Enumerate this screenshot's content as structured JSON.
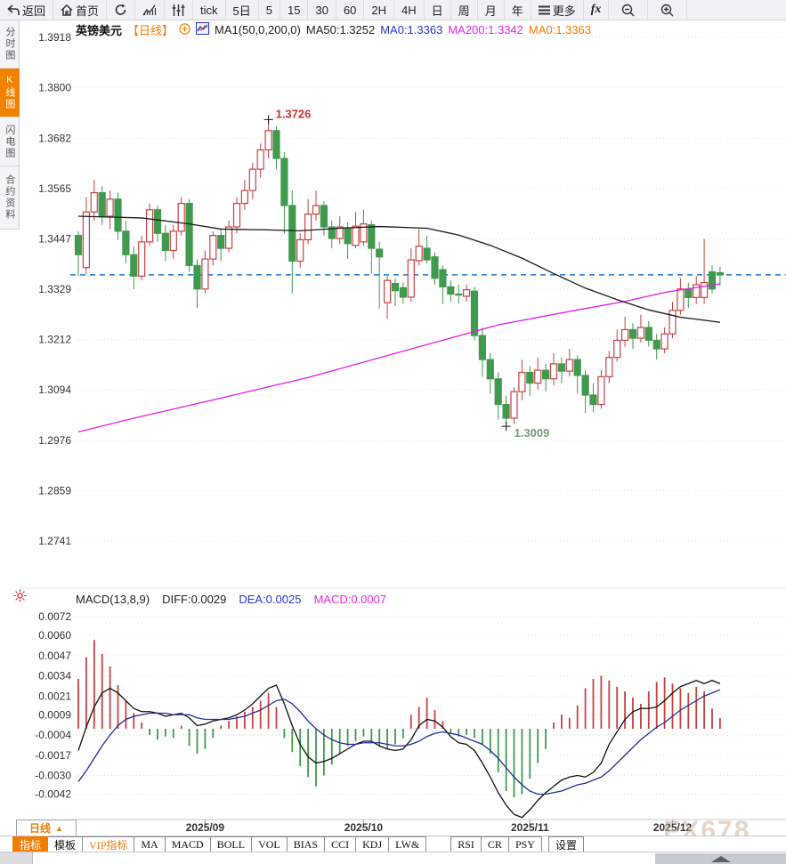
{
  "toolbar": {
    "back": "返回",
    "home": "首页",
    "tick": "tick",
    "periods": [
      "5日",
      "5",
      "15",
      "30",
      "60",
      "2H",
      "4H",
      "日",
      "周",
      "月",
      "年"
    ],
    "more": "更多",
    "fx": "fx"
  },
  "sidebar": {
    "items": [
      {
        "label": "分时图",
        "active": false
      },
      {
        "label": "K线图",
        "active": true
      },
      {
        "label": "闪电图",
        "active": false
      },
      {
        "label": "合约资料",
        "active": false
      }
    ]
  },
  "price_header": {
    "symbol": "英镑美元",
    "period_tag": "【日线】",
    "ma_settings": "MA1(50,0,200,0)",
    "ma50": "MA50:1.3252",
    "ma0_blue": "MA0:1.3363",
    "ma200": "MA200:1.3342",
    "ma0_orange": "MA0:1.3363"
  },
  "macd_header": {
    "title": "MACD(13,8,9)",
    "diff": "DIFF:0.0029",
    "dea": "DEA:0.0025",
    "macd": "MACD:0.0007"
  },
  "bottom": {
    "period_button": "日线",
    "tabs": [
      {
        "label": "指标",
        "state": "active"
      },
      {
        "label": "模板",
        "state": ""
      },
      {
        "label": "VIP指标",
        "state": "vip"
      },
      {
        "label": "MA",
        "state": ""
      },
      {
        "label": "MACD",
        "state": ""
      },
      {
        "label": "BOLL",
        "state": ""
      },
      {
        "label": "VOL",
        "state": ""
      },
      {
        "label": "BIAS",
        "state": ""
      },
      {
        "label": "CCI",
        "state": ""
      },
      {
        "label": "KDJ",
        "state": ""
      },
      {
        "label": "LW&",
        "state": ""
      },
      {
        "label": "RSI",
        "state": "gap"
      },
      {
        "label": "CR",
        "state": ""
      },
      {
        "label": "PSY",
        "state": ""
      },
      {
        "label": "设置",
        "state": "gap2"
      }
    ]
  },
  "watermark": "FX678",
  "chart_data": {
    "type": "candlestick+macd",
    "symbol": "英镑美元 (GBP/USD)",
    "timeframe": "日线",
    "price_axis": {
      "labels": [
        "1.3918",
        "1.3800",
        "1.3682",
        "1.3565",
        "1.3447",
        "1.3329",
        "1.3212",
        "1.3094",
        "1.2976",
        "1.2859",
        "1.2741"
      ],
      "last_price_line": 1.3363,
      "high_marker": {
        "index": 24,
        "price": 1.3726,
        "label": "1.3726"
      },
      "low_marker": {
        "index": 54,
        "price": 1.3009,
        "label": "1.3009"
      }
    },
    "x_axis": {
      "labels": [
        {
          "label": "2025/09",
          "index": 16
        },
        {
          "label": "2025/10",
          "index": 36
        },
        {
          "label": "2025/11",
          "index": 57
        },
        {
          "label": "2025/12",
          "index": 75
        }
      ]
    },
    "candles": [
      [
        1.3455,
        1.3465,
        1.336,
        1.341
      ],
      [
        1.338,
        1.3545,
        1.3365,
        1.351
      ],
      [
        1.351,
        1.3585,
        1.349,
        1.3555
      ],
      [
        1.3555,
        1.357,
        1.348,
        1.35
      ],
      [
        1.35,
        1.356,
        1.347,
        1.354
      ],
      [
        1.354,
        1.3555,
        1.3445,
        1.3465
      ],
      [
        1.3465,
        1.349,
        1.339,
        1.341
      ],
      [
        1.341,
        1.343,
        1.333,
        1.336
      ],
      [
        1.336,
        1.3455,
        1.335,
        1.344
      ],
      [
        1.344,
        1.353,
        1.343,
        1.3515
      ],
      [
        1.3515,
        1.3525,
        1.344,
        1.346
      ],
      [
        1.346,
        1.348,
        1.3395,
        1.342
      ],
      [
        1.342,
        1.348,
        1.34,
        1.3465
      ],
      [
        1.3465,
        1.3545,
        1.3455,
        1.353
      ],
      [
        1.353,
        1.354,
        1.337,
        1.3385
      ],
      [
        1.3385,
        1.34,
        1.3285,
        1.333
      ],
      [
        1.333,
        1.342,
        1.332,
        1.34
      ],
      [
        1.34,
        1.3465,
        1.3385,
        1.3455
      ],
      [
        1.3455,
        1.347,
        1.3395,
        1.3425
      ],
      [
        1.3425,
        1.349,
        1.3415,
        1.3475
      ],
      [
        1.3475,
        1.3545,
        1.346,
        1.353
      ],
      [
        1.353,
        1.3585,
        1.3515,
        1.356
      ],
      [
        1.356,
        1.3625,
        1.354,
        1.361
      ],
      [
        1.361,
        1.367,
        1.359,
        1.3655
      ],
      [
        1.3655,
        1.3726,
        1.3635,
        1.37
      ],
      [
        1.37,
        1.371,
        1.361,
        1.3635
      ],
      [
        1.3635,
        1.365,
        1.346,
        1.3525
      ],
      [
        1.3525,
        1.356,
        1.332,
        1.3395
      ],
      [
        1.3395,
        1.346,
        1.338,
        1.3445
      ],
      [
        1.3445,
        1.354,
        1.3435,
        1.3505
      ],
      [
        1.3505,
        1.356,
        1.349,
        1.3525
      ],
      [
        1.3525,
        1.3535,
        1.3455,
        1.3475
      ],
      [
        1.3475,
        1.349,
        1.3425,
        1.3448
      ],
      [
        1.3448,
        1.35,
        1.3435,
        1.3475
      ],
      [
        1.3473,
        1.3485,
        1.34,
        1.3436
      ],
      [
        1.3432,
        1.351,
        1.3425,
        1.3477
      ],
      [
        1.344,
        1.3515,
        1.343,
        1.3482
      ],
      [
        1.348,
        1.349,
        1.3366,
        1.3425
      ],
      [
        1.3423,
        1.344,
        1.3284,
        1.3405
      ],
      [
        1.3298,
        1.336,
        1.326,
        1.335
      ],
      [
        1.3343,
        1.3355,
        1.329,
        1.3326
      ],
      [
        1.3333,
        1.3345,
        1.3295,
        1.3311
      ],
      [
        1.3311,
        1.3425,
        1.33,
        1.3398
      ],
      [
        1.3396,
        1.347,
        1.3385,
        1.343
      ],
      [
        1.3425,
        1.3455,
        1.339,
        1.3398
      ],
      [
        1.3405,
        1.3415,
        1.334,
        1.3355
      ],
      [
        1.3375,
        1.3385,
        1.3295,
        1.3335
      ],
      [
        1.3335,
        1.335,
        1.33,
        1.3318
      ],
      [
        1.3318,
        1.334,
        1.3295,
        1.3316
      ],
      [
        1.3313,
        1.334,
        1.33,
        1.3328
      ],
      [
        1.3325,
        1.3335,
        1.321,
        1.3221
      ],
      [
        1.3221,
        1.324,
        1.3125,
        1.3165
      ],
      [
        1.3165,
        1.318,
        1.3085,
        1.312
      ],
      [
        1.312,
        1.3135,
        1.3025,
        1.306
      ],
      [
        1.306,
        1.308,
        1.3009,
        1.3028
      ],
      [
        1.3028,
        1.31,
        1.3015,
        1.309
      ],
      [
        1.309,
        1.3165,
        1.307,
        1.3135
      ],
      [
        1.3135,
        1.315,
        1.308,
        1.311
      ],
      [
        1.311,
        1.317,
        1.3095,
        1.314
      ],
      [
        1.314,
        1.3155,
        1.309,
        1.312
      ],
      [
        1.312,
        1.318,
        1.3105,
        1.3155
      ],
      [
        1.3155,
        1.317,
        1.311,
        1.3138
      ],
      [
        1.3138,
        1.319,
        1.3125,
        1.3165
      ],
      [
        1.3165,
        1.3175,
        1.3085,
        1.3128
      ],
      [
        1.3128,
        1.314,
        1.304,
        1.3082
      ],
      [
        1.3082,
        1.311,
        1.3042,
        1.306
      ],
      [
        1.306,
        1.314,
        1.305,
        1.3125
      ],
      [
        1.3125,
        1.3185,
        1.311,
        1.317
      ],
      [
        1.317,
        1.3235,
        1.316,
        1.321
      ],
      [
        1.321,
        1.3265,
        1.3195,
        1.3235
      ],
      [
        1.3235,
        1.325,
        1.319,
        1.3215
      ],
      [
        1.3215,
        1.327,
        1.3205,
        1.324
      ],
      [
        1.324,
        1.3255,
        1.3195,
        1.321
      ],
      [
        1.321,
        1.3225,
        1.3165,
        1.319
      ],
      [
        1.319,
        1.324,
        1.318,
        1.3225
      ],
      [
        1.3225,
        1.33,
        1.3215,
        1.328
      ],
      [
        1.328,
        1.3355,
        1.327,
        1.333
      ],
      [
        1.333,
        1.3345,
        1.3285,
        1.331
      ],
      [
        1.331,
        1.336,
        1.3295,
        1.334
      ],
      [
        1.331,
        1.3447,
        1.3295,
        1.3345
      ],
      [
        1.337,
        1.3385,
        1.332,
        1.333
      ],
      [
        1.3368,
        1.3382,
        1.3338,
        1.3363
      ]
    ],
    "ma50_points": [
      [
        0,
        1.35
      ],
      [
        8,
        1.3496
      ],
      [
        14,
        1.3482
      ],
      [
        18,
        1.347
      ],
      [
        24,
        1.3468
      ],
      [
        28,
        1.3466
      ],
      [
        33,
        1.3472
      ],
      [
        38,
        1.3476
      ],
      [
        44,
        1.3472
      ],
      [
        48,
        1.3456
      ],
      [
        52,
        1.3432
      ],
      [
        56,
        1.3402
      ],
      [
        60,
        1.3366
      ],
      [
        64,
        1.3332
      ],
      [
        68,
        1.3305
      ],
      [
        72,
        1.3281
      ],
      [
        76,
        1.3264
      ],
      [
        79,
        1.3257
      ],
      [
        81,
        1.3252
      ]
    ],
    "ma200_points": [
      [
        0,
        1.2996
      ],
      [
        7,
        1.3028
      ],
      [
        18,
        1.3075
      ],
      [
        29,
        1.3123
      ],
      [
        44,
        1.32
      ],
      [
        53,
        1.3246
      ],
      [
        63,
        1.3281
      ],
      [
        69,
        1.3301
      ],
      [
        74,
        1.3322
      ],
      [
        81,
        1.3342
      ]
    ],
    "macd": {
      "axis_labels": [
        "0.0072",
        "0.0060",
        "0.0047",
        "0.0034",
        "0.0021",
        "0.0009",
        "-0.0004",
        "-0.0017",
        "-0.0030",
        "-0.0042"
      ],
      "diff": [
        -0.0014,
        0.0001,
        0.0014,
        0.0023,
        0.0026,
        0.0023,
        0.0018,
        0.0013,
        0.0011,
        0.0011,
        0.001,
        0.0008,
        0.0009,
        0.001,
        0.0007,
        0.0002,
        0.0003,
        0.0005,
        0.0006,
        0.0007,
        0.0009,
        0.0012,
        0.0016,
        0.0021,
        0.0026,
        0.0028,
        0.0016,
        0.0002,
        -0.001,
        -0.0018,
        -0.0022,
        -0.0021,
        -0.0019,
        -0.0016,
        -0.0013,
        -0.001,
        -0.0008,
        -0.0008,
        -0.0011,
        -0.0013,
        -0.0014,
        -0.0013,
        -0.0007,
        0.0002,
        0.0006,
        0.0005,
        0.0001,
        -0.0005,
        -0.0009,
        -0.001,
        -0.0014,
        -0.0022,
        -0.0031,
        -0.0041,
        -0.0049,
        -0.0055,
        -0.0057,
        -0.0052,
        -0.0046,
        -0.0041,
        -0.0037,
        -0.0033,
        -0.0031,
        -0.003,
        -0.0031,
        -0.0028,
        -0.0022,
        -0.001,
        -0.0002,
        0.0006,
        0.0011,
        0.0013,
        0.0013,
        0.0014,
        0.0018,
        0.0023,
        0.0027,
        0.0029,
        0.0031,
        0.0029,
        0.0031,
        0.0029
      ],
      "dea": [
        -0.0034,
        -0.0027,
        -0.0019,
        -0.0011,
        -0.0004,
        0.0002,
        0.0006,
        0.0008,
        0.0009,
        0.001,
        0.001,
        0.001,
        0.0009,
        0.0009,
        0.0009,
        0.0007,
        0.0006,
        0.0006,
        0.0006,
        0.0006,
        0.0007,
        0.0008,
        0.001,
        0.0012,
        0.0015,
        0.0018,
        0.0019,
        0.0016,
        0.0011,
        0.0005,
        0.0,
        -0.0004,
        -0.0007,
        -0.0009,
        -0.001,
        -0.001,
        -0.0009,
        -0.0009,
        -0.0009,
        -0.001,
        -0.0011,
        -0.0011,
        -0.001,
        -0.0008,
        -0.0005,
        -0.0003,
        -0.0002,
        -0.0003,
        -0.0004,
        -0.0006,
        -0.0008,
        -0.001,
        -0.0014,
        -0.0019,
        -0.0025,
        -0.0031,
        -0.0036,
        -0.004,
        -0.0042,
        -0.0042,
        -0.0041,
        -0.004,
        -0.0038,
        -0.0036,
        -0.0035,
        -0.0033,
        -0.0031,
        -0.0027,
        -0.0022,
        -0.0017,
        -0.0012,
        -0.0007,
        -0.0003,
        0.0001,
        0.0004,
        0.0008,
        0.0012,
        0.0015,
        0.0018,
        0.0021,
        0.0023,
        0.0025
      ],
      "histogram": [
        0.0032,
        0.0046,
        0.0057,
        0.0048,
        0.004,
        0.0028,
        0.0018,
        0.001,
        0.0004,
        -0.0004,
        -0.0007,
        -0.0005,
        -0.0006,
        0.0002,
        -0.0011,
        -0.0016,
        -0.0013,
        -0.0006,
        0.0002,
        0.0005,
        0.0008,
        0.0011,
        0.0014,
        0.0018,
        0.0023,
        0.0014,
        -0.0006,
        -0.0015,
        -0.0024,
        -0.0031,
        -0.0037,
        -0.003,
        -0.0023,
        -0.0016,
        -0.0011,
        -0.0008,
        -0.0005,
        -0.0008,
        -0.0011,
        -0.0013,
        -0.001,
        -0.0006,
        0.0009,
        0.0014,
        0.002,
        0.0012,
        0.0005,
        -0.0003,
        -0.0005,
        -0.0004,
        -0.0006,
        -0.001,
        -0.0016,
        -0.0028,
        -0.004,
        -0.0044,
        -0.0042,
        -0.0032,
        -0.0022,
        -0.0013,
        0.0004,
        0.0009,
        0.0007,
        0.0015,
        0.0026,
        0.0032,
        0.0034,
        0.0031,
        0.0027,
        0.0024,
        0.002,
        0.0016,
        0.0024,
        0.003,
        0.0033,
        0.0029,
        0.0026,
        0.0023,
        0.0027,
        0.0024,
        0.0013,
        0.0007
      ]
    },
    "colors": {
      "up": "#c94141",
      "down": "#3f9a4e",
      "ma50": "#1a1a1a",
      "ma200": "#e61ae6",
      "diff": "#111111",
      "dea": "#20309a",
      "last_price": "#1e78d7",
      "grid": "#dfe1e8",
      "high_label": "#c93535",
      "low_label": "#6f9f78"
    },
    "legend_position": "top-left",
    "grid": true
  }
}
